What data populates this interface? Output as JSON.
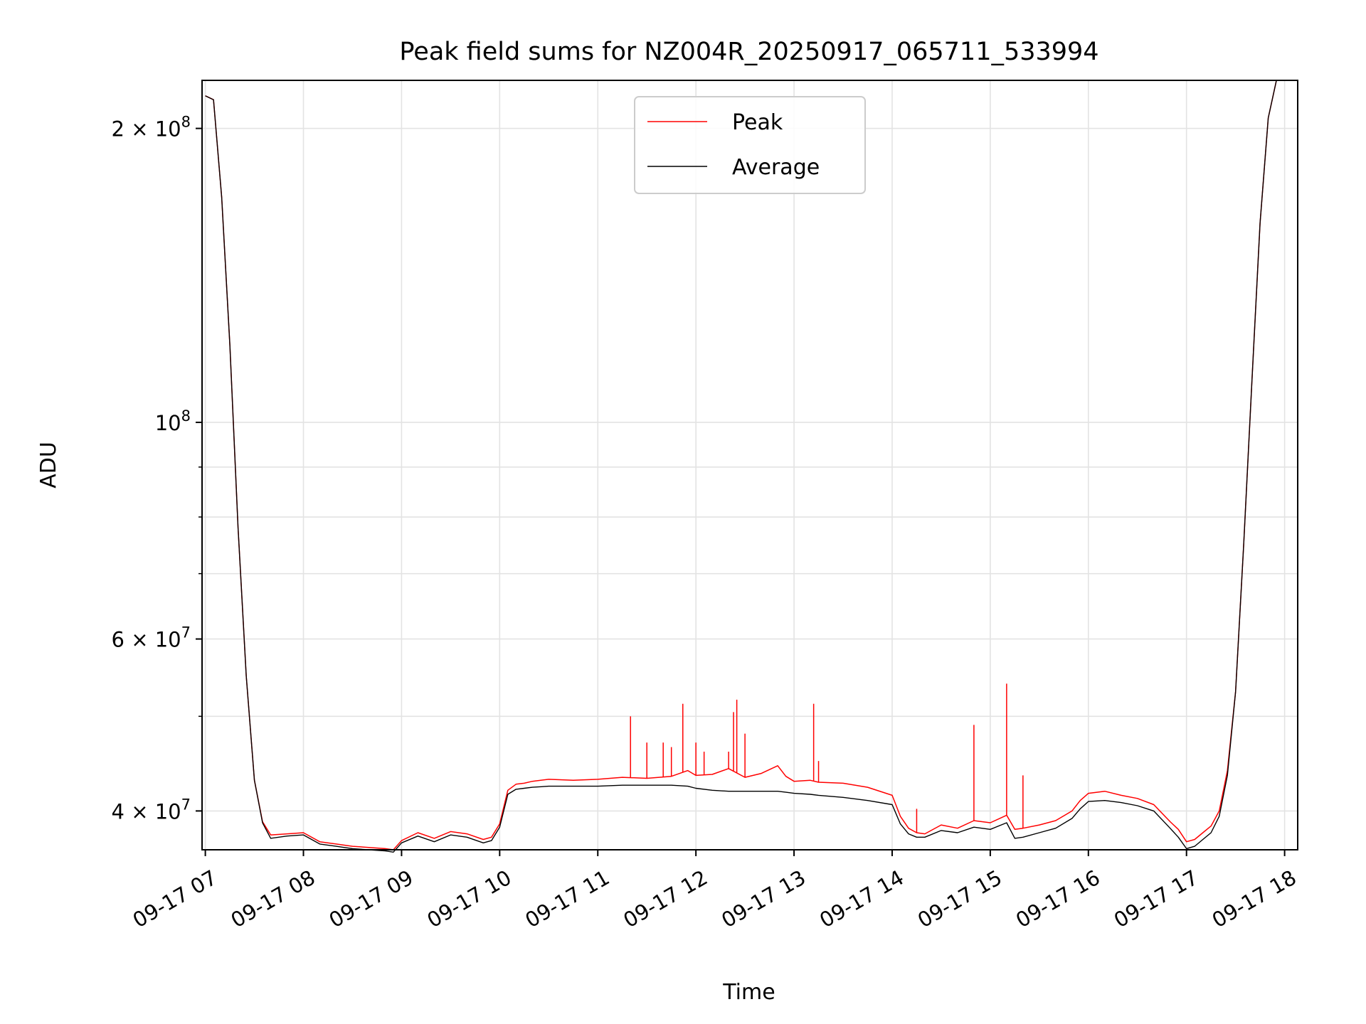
{
  "chart_data": {
    "type": "line",
    "title": "Peak field sums for NZ004R_20250917_065711_533994",
    "xlabel": "Time",
    "ylabel": "ADU",
    "yscale": "log",
    "grid": true,
    "legend_position": "top-center",
    "xlim": [
      "09-17 06:58",
      "09-17 18:08"
    ],
    "ylim": [
      36500000,
      224000000
    ],
    "x_ticks": [
      {
        "value": "09-17 07:00",
        "label": "09-17 07"
      },
      {
        "value": "09-17 08:00",
        "label": "09-17 08"
      },
      {
        "value": "09-17 09:00",
        "label": "09-17 09"
      },
      {
        "value": "09-17 10:00",
        "label": "09-17 10"
      },
      {
        "value": "09-17 11:00",
        "label": "09-17 11"
      },
      {
        "value": "09-17 12:00",
        "label": "09-17 12"
      },
      {
        "value": "09-17 13:00",
        "label": "09-17 13"
      },
      {
        "value": "09-17 14:00",
        "label": "09-17 14"
      },
      {
        "value": "09-17 15:00",
        "label": "09-17 15"
      },
      {
        "value": "09-17 16:00",
        "label": "09-17 16"
      },
      {
        "value": "09-17 17:00",
        "label": "09-17 17"
      },
      {
        "value": "09-17 18:00",
        "label": "09-17 18"
      }
    ],
    "y_ticks": [
      {
        "value": 40000000,
        "base": "4 × 10",
        "exp": "7"
      },
      {
        "value": 60000000,
        "base": "6 × 10",
        "exp": "7"
      },
      {
        "value": 100000000,
        "base": "10",
        "exp": "8"
      },
      {
        "value": 200000000,
        "base": "2 × 10",
        "exp": "8"
      }
    ],
    "y_minor_ticks": [
      50000000,
      70000000,
      80000000,
      90000000
    ],
    "series": [
      {
        "name": "Peak",
        "color": "#ff0000",
        "x": [
          "07:00",
          "07:05",
          "07:10",
          "07:15",
          "07:20",
          "07:25",
          "07:30",
          "07:35",
          "07:40",
          "07:50",
          "08:00",
          "08:10",
          "08:20",
          "08:30",
          "08:40",
          "08:50",
          "08:55",
          "09:00",
          "09:10",
          "09:20",
          "09:30",
          "09:40",
          "09:50",
          "09:55",
          "10:00",
          "10:05",
          "10:10",
          "10:15",
          "10:20",
          "10:30",
          "10:45",
          "11:00",
          "11:15",
          "11:30",
          "11:45",
          "11:55",
          "12:00",
          "12:10",
          "12:20",
          "12:30",
          "12:40",
          "12:50",
          "12:55",
          "13:00",
          "13:10",
          "13:15",
          "13:30",
          "13:45",
          "14:00",
          "14:05",
          "14:10",
          "14:15",
          "14:20",
          "14:30",
          "14:40",
          "14:50",
          "15:00",
          "15:10",
          "15:15",
          "15:20",
          "15:30",
          "15:40",
          "15:50",
          "15:55",
          "16:00",
          "16:10",
          "16:20",
          "16:30",
          "16:40",
          "16:50",
          "16:55",
          "17:00",
          "17:05",
          "17:10",
          "17:15",
          "17:20",
          "17:25",
          "17:30",
          "17:35",
          "17:40",
          "17:45",
          "17:50",
          "17:55"
        ],
        "values": [
          216000000,
          214000000,
          170000000,
          120000000,
          78000000,
          55000000,
          43000000,
          39000000,
          37800000,
          37900000,
          38000000,
          37200000,
          37000000,
          36800000,
          36700000,
          36600000,
          36500000,
          37300000,
          38000000,
          37500000,
          38100000,
          37900000,
          37400000,
          37600000,
          38800000,
          42000000,
          42600000,
          42700000,
          42900000,
          43100000,
          43000000,
          43100000,
          43300000,
          43200000,
          43400000,
          44000000,
          43500000,
          43600000,
          44200000,
          43300000,
          43700000,
          44500000,
          43400000,
          42900000,
          43000000,
          42800000,
          42700000,
          42300000,
          41500000,
          39500000,
          38400000,
          38000000,
          37900000,
          38700000,
          38400000,
          39100000,
          38900000,
          39600000,
          38300000,
          38400000,
          38700000,
          39100000,
          40000000,
          41000000,
          41700000,
          41900000,
          41500000,
          41200000,
          40600000,
          39000000,
          38300000,
          37200000,
          37400000,
          38000000,
          38600000,
          40000000,
          44000000,
          53000000,
          75000000,
          110000000,
          160000000,
          205000000,
          224000000
        ],
        "spikes": [
          {
            "x": "11:20",
            "value": 50000000
          },
          {
            "x": "11:30",
            "value": 47000000
          },
          {
            "x": "11:40",
            "value": 47000000
          },
          {
            "x": "11:45",
            "value": 46500000
          },
          {
            "x": "11:52",
            "value": 51500000
          },
          {
            "x": "12:00",
            "value": 47000000
          },
          {
            "x": "12:05",
            "value": 46000000
          },
          {
            "x": "12:20",
            "value": 46000000
          },
          {
            "x": "12:23",
            "value": 50500000
          },
          {
            "x": "12:25",
            "value": 52000000
          },
          {
            "x": "12:30",
            "value": 48000000
          },
          {
            "x": "13:12",
            "value": 51500000
          },
          {
            "x": "13:15",
            "value": 45000000
          },
          {
            "x": "14:15",
            "value": 40200000
          },
          {
            "x": "14:50",
            "value": 49000000
          },
          {
            "x": "15:10",
            "value": 54000000
          },
          {
            "x": "15:20",
            "value": 43500000
          }
        ]
      },
      {
        "name": "Average",
        "color": "#000000",
        "x": [
          "07:00",
          "07:05",
          "07:10",
          "07:15",
          "07:20",
          "07:25",
          "07:30",
          "07:35",
          "07:40",
          "07:50",
          "08:00",
          "08:10",
          "08:20",
          "08:30",
          "08:40",
          "08:50",
          "08:55",
          "09:00",
          "09:10",
          "09:20",
          "09:30",
          "09:40",
          "09:50",
          "09:55",
          "10:00",
          "10:05",
          "10:10",
          "10:15",
          "10:20",
          "10:30",
          "10:45",
          "11:00",
          "11:15",
          "11:30",
          "11:45",
          "11:55",
          "12:00",
          "12:10",
          "12:20",
          "12:30",
          "12:40",
          "12:50",
          "12:55",
          "13:00",
          "13:10",
          "13:15",
          "13:30",
          "13:45",
          "14:00",
          "14:05",
          "14:10",
          "14:15",
          "14:20",
          "14:30",
          "14:40",
          "14:50",
          "15:00",
          "15:10",
          "15:15",
          "15:20",
          "15:30",
          "15:40",
          "15:50",
          "15:55",
          "16:00",
          "16:10",
          "16:20",
          "16:30",
          "16:40",
          "16:50",
          "16:55",
          "17:00",
          "17:05",
          "17:10",
          "17:15",
          "17:20",
          "17:25",
          "17:30",
          "17:35",
          "17:40",
          "17:45",
          "17:50",
          "17:55"
        ],
        "values": [
          216000000,
          214000000,
          170000000,
          120000000,
          78000000,
          55000000,
          43000000,
          38900000,
          37500000,
          37700000,
          37800000,
          37000000,
          36800000,
          36600000,
          36500000,
          36400000,
          36300000,
          37100000,
          37700000,
          37200000,
          37800000,
          37600000,
          37100000,
          37300000,
          38500000,
          41600000,
          42100000,
          42200000,
          42300000,
          42400000,
          42400000,
          42400000,
          42500000,
          42500000,
          42500000,
          42400000,
          42200000,
          42000000,
          41900000,
          41900000,
          41900000,
          41900000,
          41800000,
          41700000,
          41600000,
          41500000,
          41300000,
          41000000,
          40600000,
          38800000,
          37900000,
          37600000,
          37600000,
          38200000,
          38000000,
          38500000,
          38300000,
          38900000,
          37500000,
          37600000,
          38000000,
          38400000,
          39300000,
          40200000,
          40900000,
          41000000,
          40800000,
          40500000,
          40000000,
          38400000,
          37600000,
          36600000,
          36800000,
          37400000,
          38000000,
          39500000,
          43500000,
          53000000,
          75000000,
          110000000,
          160000000,
          205000000,
          224000000
        ]
      }
    ]
  }
}
